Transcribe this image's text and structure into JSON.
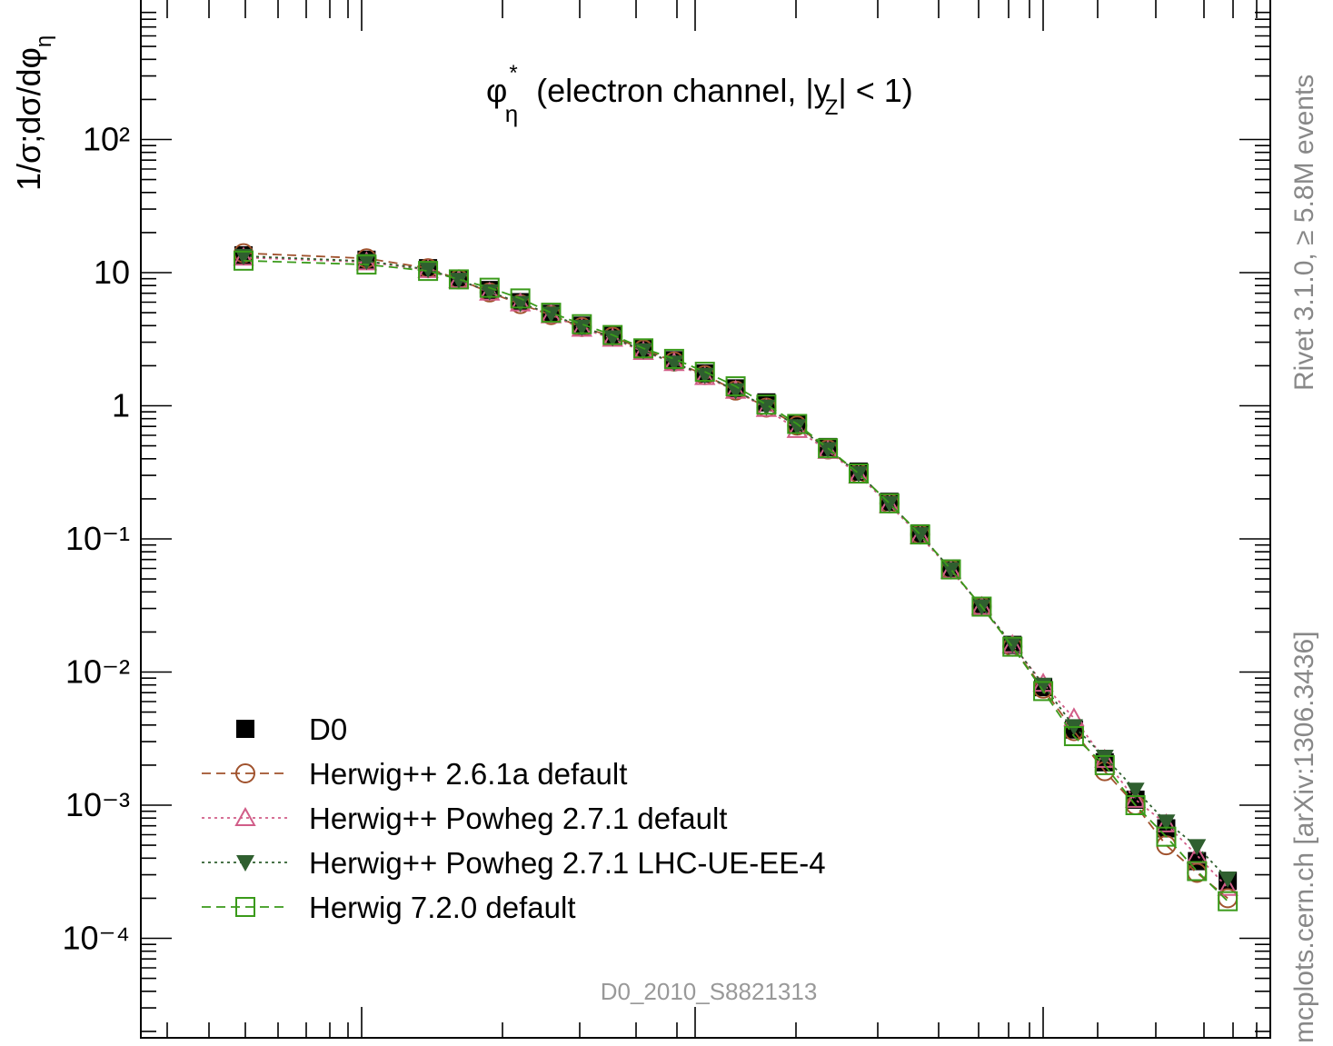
{
  "chart_data": {
    "type": "line",
    "title": "",
    "subtitle": "",
    "xlabel": "",
    "ylabel": "1/σ;dσ/dφ_η^*",
    "y_scale": "log",
    "ylim": [
      2e-05,
      1000
    ],
    "x_scale": "log",
    "x_index_range": [
      0,
      33
    ],
    "grid": false,
    "legend_position": "bottom-left",
    "panel_label": "φ_η^* (electron channel, |y_Z| < 1)",
    "analysis_id": "D0_2010_S8821313",
    "side_labels": {
      "top": "Rivet 3.1.0, ≥ 5.8M events",
      "bottom": "mcplots.cern.ch [arXiv:1306.3436]"
    },
    "y_ticks": [
      {
        "value": 0.0001,
        "label": "10⁻⁴"
      },
      {
        "value": 0.001,
        "label": "10⁻³"
      },
      {
        "value": 0.01,
        "label": "10⁻²"
      },
      {
        "value": 0.1,
        "label": "10⁻¹"
      },
      {
        "value": 1,
        "label": "1"
      },
      {
        "value": 10,
        "label": "10"
      },
      {
        "value": 100,
        "label": "10²"
      }
    ],
    "x_index": [
      0,
      4,
      6,
      7,
      8,
      9,
      10,
      11,
      12,
      13,
      14,
      15,
      16,
      17,
      18,
      19,
      20,
      21,
      22,
      23,
      24,
      25,
      26,
      27,
      28,
      29,
      30,
      31,
      32,
      33
    ],
    "series": [
      {
        "name": "D0",
        "color": "#000000",
        "marker": "square-filled",
        "line": "none",
        "values": [
          13.5,
          12.5,
          10.8,
          9.0,
          7.4,
          6.0,
          4.9,
          4.0,
          3.35,
          2.7,
          2.2,
          1.75,
          1.35,
          1.06,
          0.73,
          0.49,
          0.32,
          0.19,
          0.11,
          0.06,
          0.031,
          0.016,
          0.0077,
          0.0037,
          0.0021,
          0.0011,
          0.00067,
          0.00038,
          0.00027
        ]
      },
      {
        "name": "Herwig++ 2.6.1a default",
        "color": "#a0522d",
        "marker": "circle-open",
        "line": "dashed",
        "values": [
          14.0,
          12.8,
          10.8,
          8.9,
          7.1,
          5.8,
          4.8,
          3.9,
          3.3,
          2.65,
          2.15,
          1.7,
          1.3,
          0.97,
          0.71,
          0.47,
          0.31,
          0.185,
          0.108,
          0.059,
          0.031,
          0.0155,
          0.0075,
          0.0036,
          0.0018,
          0.001,
          0.0005,
          0.00031,
          0.0002
        ]
      },
      {
        "name": "Herwig++ Powheg 2.7.1 default",
        "color": "#d15d88",
        "marker": "triangle-open",
        "line": "dotted",
        "values": [
          13.0,
          12.0,
          10.5,
          8.8,
          7.1,
          5.9,
          4.8,
          3.8,
          3.2,
          2.55,
          2.1,
          1.65,
          1.3,
          0.95,
          0.66,
          0.46,
          0.3,
          0.18,
          0.105,
          0.058,
          0.031,
          0.016,
          0.0082,
          0.0045,
          0.0022,
          0.0011,
          0.00072,
          0.00042,
          0.00024
        ]
      },
      {
        "name": "Herwig++ Powheg 2.7.1 LHC-UE-EE-4",
        "color": "#2f5f2f",
        "marker": "triangle-down-filled",
        "line": "dotted",
        "values": [
          13.3,
          12.2,
          10.6,
          8.8,
          7.2,
          5.9,
          4.9,
          3.9,
          3.25,
          2.6,
          2.1,
          1.7,
          1.3,
          0.98,
          0.7,
          0.47,
          0.31,
          0.185,
          0.108,
          0.059,
          0.031,
          0.0162,
          0.008,
          0.0039,
          0.0023,
          0.0013,
          0.00075,
          0.00049,
          0.00028
        ]
      },
      {
        "name": "Herwig 7.2.0 default",
        "color": "#3a9a1a",
        "marker": "square-open",
        "line": "dashed",
        "values": [
          12.3,
          11.5,
          10.3,
          8.9,
          7.7,
          6.4,
          5.0,
          4.1,
          3.4,
          2.7,
          2.25,
          1.8,
          1.4,
          1.02,
          0.73,
          0.48,
          0.31,
          0.185,
          0.108,
          0.059,
          0.031,
          0.0155,
          0.0072,
          0.0033,
          0.002,
          0.001,
          0.00058,
          0.00032,
          0.00019
        ]
      }
    ]
  }
}
